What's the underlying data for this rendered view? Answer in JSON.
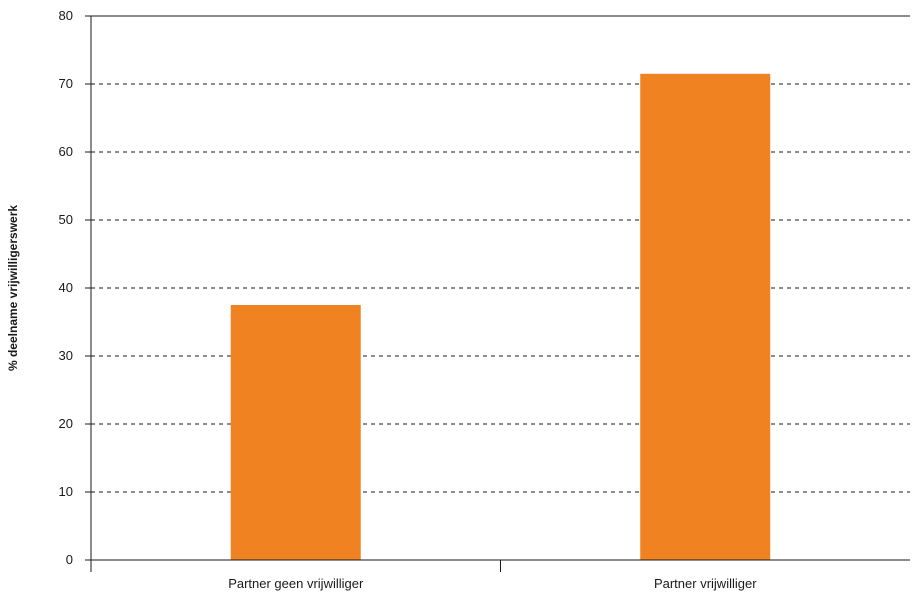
{
  "chart_data": {
    "type": "bar",
    "title": "",
    "xlabel": "",
    "ylabel": "% deelname vrijwilligerswerk",
    "categories": [
      "Partner geen vrijwilliger",
      "Partner vrijwilliger"
    ],
    "values": [
      37.5,
      71.5
    ],
    "ylim": [
      0,
      80
    ],
    "yticks": [
      0,
      10,
      20,
      30,
      40,
      50,
      60,
      70,
      80
    ],
    "grid": "horizontal-dashed",
    "legend": "none",
    "colors": {
      "bar": "#f08222",
      "axis": "#1a1a1a",
      "grid": "#1a1a1a"
    }
  }
}
